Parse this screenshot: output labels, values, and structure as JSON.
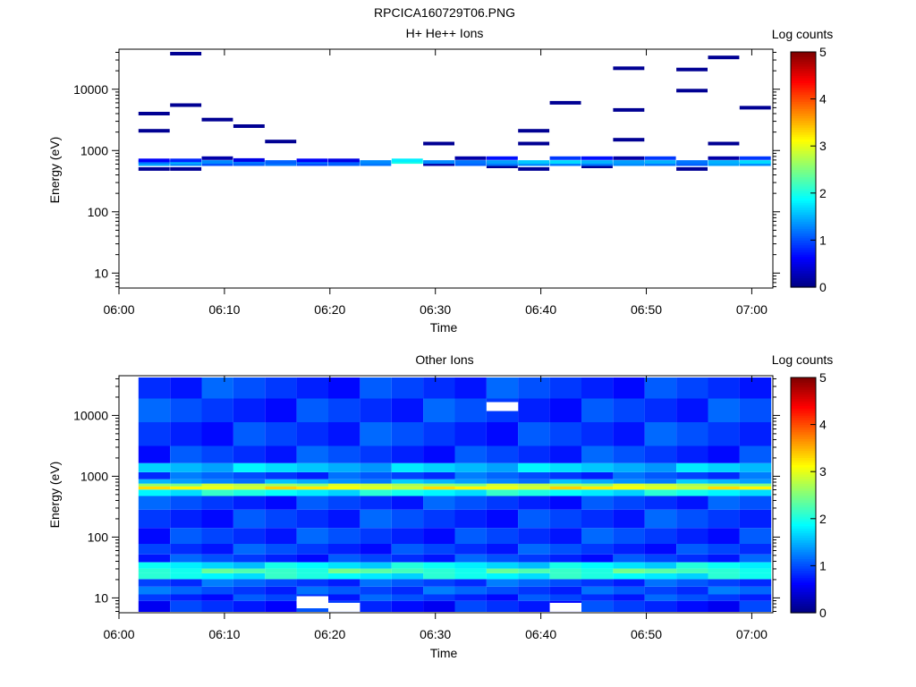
{
  "figure": {
    "title": "RPCICA160729T06.PNG"
  },
  "colors": {
    "colormap": [
      "#00007f",
      "#0000ff",
      "#007fff",
      "#00ffff",
      "#7fff7f",
      "#ffff00",
      "#ff7f00",
      "#ff0000",
      "#7f0000"
    ],
    "axis": "#000000",
    "background": "#ffffff",
    "no_data": "#ffffff"
  },
  "chart_data": [
    {
      "type": "heatmap",
      "title": "H+ He++ Ions",
      "xlabel": "Time",
      "ylabel": "Energy (eV)",
      "ylog": true,
      "ylim": [
        5.7,
        45000
      ],
      "x_range": [
        "06:00",
        "07:02"
      ],
      "x_ticks": [
        "06:00",
        "06:10",
        "06:20",
        "06:30",
        "06:40",
        "06:50",
        "07:00"
      ],
      "y_ticks": [
        "10",
        "100",
        "1000",
        "10000"
      ],
      "colorbar": {
        "label": "Log counts",
        "min": 0,
        "max": 5,
        "ticks": [
          "0",
          "1",
          "2",
          "3",
          "4",
          "5"
        ]
      },
      "cells": [
        {
          "t": "06:01",
          "e": 500,
          "v": 0.1
        },
        {
          "t": "06:01",
          "e": 600,
          "v": 1.4
        },
        {
          "t": "06:01",
          "e": 650,
          "v": 1.2
        },
        {
          "t": "06:01",
          "e": 690,
          "v": 0.6
        },
        {
          "t": "06:01",
          "e": 2100,
          "v": 0.1
        },
        {
          "t": "06:01",
          "e": 4000,
          "v": 0.1
        },
        {
          "t": "06:04",
          "e": 500,
          "v": 0.1
        },
        {
          "t": "06:04",
          "e": 600,
          "v": 1.3
        },
        {
          "t": "06:04",
          "e": 650,
          "v": 1.5
        },
        {
          "t": "06:04",
          "e": 690,
          "v": 0.8
        },
        {
          "t": "06:04",
          "e": 5500,
          "v": 0.1
        },
        {
          "t": "06:04",
          "e": 38000,
          "v": 0.1
        },
        {
          "t": "06:07",
          "e": 600,
          "v": 1.0
        },
        {
          "t": "06:07",
          "e": 650,
          "v": 1.3
        },
        {
          "t": "06:07",
          "e": 750,
          "v": 0.2
        },
        {
          "t": "06:07",
          "e": 3200,
          "v": 0.1
        },
        {
          "t": "06:10",
          "e": 600,
          "v": 1.1
        },
        {
          "t": "06:10",
          "e": 650,
          "v": 1.2
        },
        {
          "t": "06:10",
          "e": 700,
          "v": 0.5
        },
        {
          "t": "06:10",
          "e": 2500,
          "v": 0.1
        },
        {
          "t": "06:13",
          "e": 600,
          "v": 1.2
        },
        {
          "t": "06:13",
          "e": 650,
          "v": 1.1
        },
        {
          "t": "06:13",
          "e": 1400,
          "v": 0.1
        },
        {
          "t": "06:16",
          "e": 600,
          "v": 1.0
        },
        {
          "t": "06:16",
          "e": 650,
          "v": 1.2
        },
        {
          "t": "06:16",
          "e": 690,
          "v": 0.6
        },
        {
          "t": "06:19",
          "e": 600,
          "v": 1.1
        },
        {
          "t": "06:19",
          "e": 650,
          "v": 1.1
        },
        {
          "t": "06:19",
          "e": 690,
          "v": 0.5
        },
        {
          "t": "06:22",
          "e": 600,
          "v": 1.2
        },
        {
          "t": "06:22",
          "e": 650,
          "v": 1.3
        },
        {
          "t": "06:25",
          "e": 650,
          "v": 2.0
        },
        {
          "t": "06:25",
          "e": 690,
          "v": 1.8
        },
        {
          "t": "06:28",
          "e": 600,
          "v": 0.2
        },
        {
          "t": "06:28",
          "e": 650,
          "v": 1.3
        },
        {
          "t": "06:28",
          "e": 1300,
          "v": 0.1
        },
        {
          "t": "06:31",
          "e": 600,
          "v": 1.1
        },
        {
          "t": "06:31",
          "e": 650,
          "v": 1.2
        },
        {
          "t": "06:31",
          "e": 750,
          "v": 0.2
        },
        {
          "t": "06:34",
          "e": 550,
          "v": 0.1
        },
        {
          "t": "06:34",
          "e": 600,
          "v": 1.2
        },
        {
          "t": "06:34",
          "e": 650,
          "v": 1.4
        },
        {
          "t": "06:34",
          "e": 750,
          "v": 0.7
        },
        {
          "t": "06:37",
          "e": 500,
          "v": 0.1
        },
        {
          "t": "06:37",
          "e": 600,
          "v": 1.3
        },
        {
          "t": "06:37",
          "e": 650,
          "v": 1.6
        },
        {
          "t": "06:37",
          "e": 1300,
          "v": 0.1
        },
        {
          "t": "06:37",
          "e": 2100,
          "v": 0.1
        },
        {
          "t": "06:40",
          "e": 600,
          "v": 1.2
        },
        {
          "t": "06:40",
          "e": 650,
          "v": 1.7
        },
        {
          "t": "06:40",
          "e": 750,
          "v": 0.9
        },
        {
          "t": "06:40",
          "e": 6000,
          "v": 0.1
        },
        {
          "t": "06:43",
          "e": 550,
          "v": 0.1
        },
        {
          "t": "06:43",
          "e": 600,
          "v": 1.2
        },
        {
          "t": "06:43",
          "e": 650,
          "v": 1.5
        },
        {
          "t": "06:43",
          "e": 750,
          "v": 0.7
        },
        {
          "t": "06:46",
          "e": 600,
          "v": 1.3
        },
        {
          "t": "06:46",
          "e": 650,
          "v": 1.4
        },
        {
          "t": "06:46",
          "e": 750,
          "v": 0.2
        },
        {
          "t": "06:46",
          "e": 1500,
          "v": 0.1
        },
        {
          "t": "06:46",
          "e": 4600,
          "v": 0.1
        },
        {
          "t": "06:46",
          "e": 22000,
          "v": 0.1
        },
        {
          "t": "06:49",
          "e": 600,
          "v": 1.2
        },
        {
          "t": "06:49",
          "e": 650,
          "v": 1.5
        },
        {
          "t": "06:49",
          "e": 750,
          "v": 0.9
        },
        {
          "t": "06:52",
          "e": 500,
          "v": 0.1
        },
        {
          "t": "06:52",
          "e": 600,
          "v": 1.1
        },
        {
          "t": "06:52",
          "e": 650,
          "v": 1.2
        },
        {
          "t": "06:52",
          "e": 9500,
          "v": 0.1
        },
        {
          "t": "06:52",
          "e": 21000,
          "v": 0.1
        },
        {
          "t": "06:55",
          "e": 600,
          "v": 1.4
        },
        {
          "t": "06:55",
          "e": 650,
          "v": 1.5
        },
        {
          "t": "06:55",
          "e": 750,
          "v": 0.2
        },
        {
          "t": "06:55",
          "e": 1300,
          "v": 0.1
        },
        {
          "t": "06:55",
          "e": 33000,
          "v": 0.1
        },
        {
          "t": "06:58",
          "e": 600,
          "v": 1.3
        },
        {
          "t": "06:58",
          "e": 650,
          "v": 1.7
        },
        {
          "t": "06:58",
          "e": 750,
          "v": 0.9
        },
        {
          "t": "06:58",
          "e": 5000,
          "v": 0.1
        }
      ]
    },
    {
      "type": "heatmap",
      "title": "Other Ions",
      "xlabel": "Time",
      "ylabel": "Energy (eV)",
      "ylog": true,
      "ylim": [
        5.7,
        45000
      ],
      "x_range": [
        "06:00",
        "07:02"
      ],
      "x_ticks": [
        "06:00",
        "06:10",
        "06:20",
        "06:30",
        "06:40",
        "06:50",
        "07:00"
      ],
      "y_ticks": [
        "10",
        "100",
        "1000",
        "10000"
      ],
      "colorbar": {
        "label": "Log counts",
        "min": 0,
        "max": 5,
        "ticks": [
          "0",
          "1",
          "2",
          "3",
          "4",
          "5"
        ]
      },
      "time_bins": [
        "06:01",
        "06:04",
        "06:07",
        "06:10",
        "06:13",
        "06:16",
        "06:19",
        "06:22",
        "06:25",
        "06:28",
        "06:31",
        "06:34",
        "06:37",
        "06:40",
        "06:43",
        "06:46",
        "06:49",
        "06:52",
        "06:55",
        "06:58"
      ],
      "energy_bands": [
        {
          "e": 8,
          "v": 0.8
        },
        {
          "e": 10,
          "v": 0.9
        },
        {
          "e": 13,
          "v": 1.0
        },
        {
          "e": 18,
          "v": 1.0
        },
        {
          "e": 23,
          "v": 1.9
        },
        {
          "e": 28,
          "v": 2.2
        },
        {
          "e": 33,
          "v": 1.8
        },
        {
          "e": 45,
          "v": 0.9
        },
        {
          "e": 60,
          "v": 0.9
        },
        {
          "e": 100,
          "v": 0.9
        },
        {
          "e": 200,
          "v": 0.9
        },
        {
          "e": 400,
          "v": 0.9
        },
        {
          "e": 560,
          "v": 1.9
        },
        {
          "e": 650,
          "v": 3.1
        },
        {
          "e": 720,
          "v": 2.7
        },
        {
          "e": 800,
          "v": 1.4
        },
        {
          "e": 1000,
          "v": 1.0
        },
        {
          "e": 1350,
          "v": 1.6
        },
        {
          "e": 2000,
          "v": 0.9
        },
        {
          "e": 5000,
          "v": 0.9
        },
        {
          "e": 12000,
          "v": 0.9
        },
        {
          "e": 30000,
          "v": 0.9
        }
      ],
      "no_data_cells": [
        {
          "t": "06:16",
          "e": 8
        },
        {
          "t": "06:16",
          "e": 9
        },
        {
          "t": "06:19",
          "e": 7
        },
        {
          "t": "06:40",
          "e": 7
        },
        {
          "t": "06:34",
          "e": 14000
        }
      ]
    }
  ]
}
